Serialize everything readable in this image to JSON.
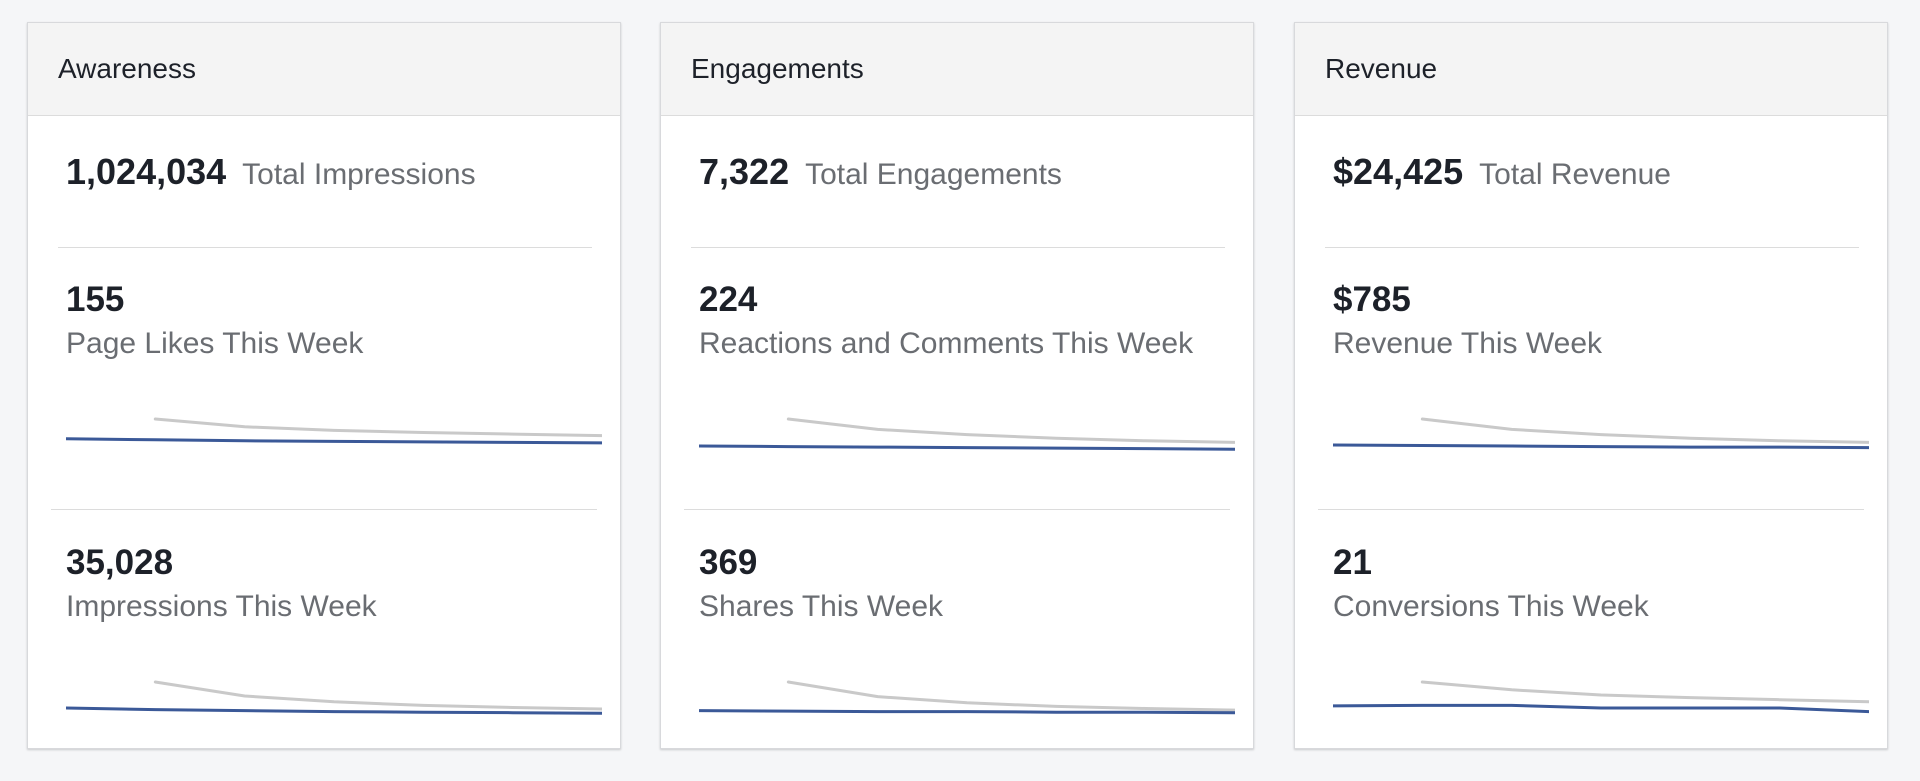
{
  "colors": {
    "page_background": "#f5f6f8",
    "card_background": "#ffffff",
    "header_background": "#f4f4f4",
    "primary_line": "#3b5998",
    "comparison_line": "#c9c9c9",
    "value_text": "#1d2129",
    "label_text": "#6a6d72"
  },
  "cards": [
    {
      "title": "Awareness",
      "total": {
        "value": "1,024,034",
        "label": "Total Impressions"
      },
      "metrics": [
        {
          "value": "155",
          "label": "Page Likes This Week",
          "sparkline": {
            "current": [
              0.62,
              0.6,
              0.58,
              0.57,
              0.56,
              0.55,
              0.54
            ],
            "previous": [
              null,
              1.0,
              0.85,
              0.78,
              0.74,
              0.71,
              0.68
            ]
          }
        },
        {
          "value": "35,028",
          "label": "Impressions This Week",
          "sparkline": {
            "current": [
              0.5,
              0.47,
              0.45,
              0.43,
              0.42,
              0.41,
              0.4
            ],
            "previous": [
              null,
              1.0,
              0.73,
              0.62,
              0.55,
              0.51,
              0.48
            ]
          }
        }
      ]
    },
    {
      "title": "Engagements",
      "total": {
        "value": "7,322",
        "label": "Total Engagements"
      },
      "metrics": [
        {
          "value": "224",
          "label": "Reactions and Comments This Week",
          "sparkline": {
            "current": [
              0.48,
              0.47,
              0.46,
              0.45,
              0.44,
              0.43,
              0.42
            ],
            "previous": [
              null,
              1.0,
              0.8,
              0.7,
              0.63,
              0.58,
              0.55
            ]
          }
        },
        {
          "value": "369",
          "label": "Shares This Week",
          "sparkline": {
            "current": [
              0.45,
              0.44,
              0.43,
              0.43,
              0.42,
              0.42,
              0.41
            ],
            "previous": [
              null,
              1.0,
              0.72,
              0.6,
              0.53,
              0.49,
              0.46
            ]
          }
        }
      ]
    },
    {
      "title": "Revenue",
      "total": {
        "value": "$24,425",
        "label": "Total Revenue"
      },
      "metrics": [
        {
          "value": "$785",
          "label": "Revenue This Week",
          "sparkline": {
            "current": [
              0.5,
              0.49,
              0.48,
              0.47,
              0.46,
              0.46,
              0.45
            ],
            "previous": [
              null,
              1.0,
              0.8,
              0.7,
              0.63,
              0.58,
              0.55
            ]
          }
        },
        {
          "value": "21",
          "label": "Conversions This Week",
          "sparkline": {
            "current": [
              0.54,
              0.55,
              0.55,
              0.5,
              0.5,
              0.5,
              0.43
            ],
            "previous": [
              null,
              1.0,
              0.85,
              0.75,
              0.7,
              0.66,
              0.62
            ]
          }
        }
      ]
    }
  ]
}
